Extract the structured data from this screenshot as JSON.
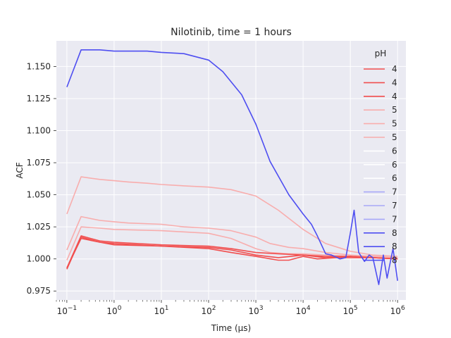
{
  "chart_data": {
    "type": "line",
    "title": "Nilotinib, time = 1 hours",
    "xlabel": "Time (μs)",
    "ylabel": "ACF",
    "xscale": "log",
    "xlim": [
      0.06,
      1500000
    ],
    "ylim": [
      0.968,
      1.17
    ],
    "xticks": [
      {
        "value": 0.1,
        "base": "10",
        "exp": "−1"
      },
      {
        "value": 1,
        "base": "10",
        "exp": "0"
      },
      {
        "value": 10,
        "base": "10",
        "exp": "1"
      },
      {
        "value": 100,
        "base": "10",
        "exp": "2"
      },
      {
        "value": 1000,
        "base": "10",
        "exp": "3"
      },
      {
        "value": 10000,
        "base": "10",
        "exp": "4"
      },
      {
        "value": 100000,
        "base": "10",
        "exp": "5"
      },
      {
        "value": 1000000,
        "base": "10",
        "exp": "6"
      }
    ],
    "yticks": [
      {
        "value": 0.975,
        "label": "0.975"
      },
      {
        "value": 1.0,
        "label": "1.000"
      },
      {
        "value": 1.025,
        "label": "1.025"
      },
      {
        "value": 1.05,
        "label": "1.050"
      },
      {
        "value": 1.075,
        "label": "1.075"
      },
      {
        "value": 1.1,
        "label": "1.100"
      },
      {
        "value": 1.125,
        "label": "1.125"
      },
      {
        "value": 1.15,
        "label": "1.150"
      }
    ],
    "grid": true,
    "background": "#eaeaf2",
    "legend": {
      "title": "pH",
      "placement": "top-right",
      "entries": [
        {
          "label": "4",
          "color": "#f14e4e"
        },
        {
          "label": "4",
          "color": "#f14e4e"
        },
        {
          "label": "4",
          "color": "#f14e4e"
        },
        {
          "label": "5",
          "color": "#f8adad"
        },
        {
          "label": "5",
          "color": "#f8adad"
        },
        {
          "label": "5",
          "color": "#f8adad"
        },
        {
          "label": "6",
          "color": "#ffffff"
        },
        {
          "label": "6",
          "color": "#ffffff"
        },
        {
          "label": "6",
          "color": "#ffffff"
        },
        {
          "label": "7",
          "color": "#a7a7f8"
        },
        {
          "label": "7",
          "color": "#a7a7f8"
        },
        {
          "label": "7",
          "color": "#a7a7f8"
        },
        {
          "label": "8",
          "color": "#4e4ef1"
        },
        {
          "label": "8",
          "color": "#4e4ef1"
        },
        {
          "label": "8",
          "color": "#4e4ef1"
        }
      ]
    },
    "series": [
      {
        "color": "#f8adad",
        "x": [
          0.1,
          0.2,
          0.5,
          1,
          2,
          5,
          10,
          30,
          100,
          300,
          1000,
          3000,
          10000,
          30000,
          100000,
          300000,
          1000000
        ],
        "y": [
          1.035,
          1.064,
          1.062,
          1.061,
          1.06,
          1.059,
          1.058,
          1.057,
          1.056,
          1.054,
          1.049,
          1.038,
          1.023,
          1.012,
          1.006,
          1.003,
          1.002
        ]
      },
      {
        "color": "#f8adad",
        "x": [
          0.1,
          0.2,
          0.5,
          1,
          2,
          10,
          30,
          100,
          300,
          1000,
          2000,
          5000,
          10000,
          30000,
          100000,
          300000,
          1000000
        ],
        "y": [
          1.007,
          1.033,
          1.03,
          1.029,
          1.028,
          1.027,
          1.025,
          1.024,
          1.022,
          1.017,
          1.012,
          1.009,
          1.008,
          1.005,
          1.003,
          1.002,
          1.001
        ]
      },
      {
        "color": "#f8adad",
        "x": [
          0.1,
          0.2,
          0.5,
          1,
          10,
          100,
          300,
          1000,
          2000,
          5000,
          10000,
          30000,
          100000,
          300000,
          1000000
        ],
        "y": [
          0.999,
          1.025,
          1.024,
          1.023,
          1.022,
          1.02,
          1.016,
          1.008,
          1.005,
          1.004,
          1.004,
          1.003,
          1.002,
          1.002,
          1.001
        ]
      },
      {
        "color": "#f14e4e",
        "x": [
          0.1,
          0.2,
          0.5,
          1,
          10,
          100,
          300,
          1000,
          3000,
          10000,
          30000,
          100000,
          300000,
          1000000
        ],
        "y": [
          0.993,
          1.018,
          1.014,
          1.013,
          1.011,
          1.01,
          1.008,
          1.005,
          1.004,
          1.003,
          1.002,
          1.002,
          1.001,
          1.0
        ]
      },
      {
        "color": "#f14e4e",
        "x": [
          0.1,
          0.2,
          0.5,
          1,
          10,
          100,
          300,
          1000,
          3000,
          10000,
          30000,
          100000,
          300000,
          1000000
        ],
        "y": [
          0.992,
          1.017,
          1.013,
          1.012,
          1.01,
          1.009,
          1.007,
          1.003,
          1.001,
          1.003,
          1.001,
          1.002,
          1.001,
          1.0
        ]
      },
      {
        "color": "#f14e4e",
        "x": [
          0.1,
          0.2,
          0.5,
          1,
          10,
          100,
          300,
          1000,
          3000,
          5000,
          10000,
          20000,
          50000,
          100000,
          300000,
          1000000
        ],
        "y": [
          0.993,
          1.016,
          1.013,
          1.011,
          1.01,
          1.008,
          1.005,
          1.002,
          0.999,
          0.999,
          1.002,
          1.0,
          1.001,
          1.001,
          1.001,
          1.0
        ]
      },
      {
        "color": "#4e4ef1",
        "x": [
          0.1,
          0.2,
          0.5,
          1,
          5,
          10,
          30,
          100,
          200,
          500,
          1000,
          2000,
          5000,
          10000,
          15000,
          20000,
          30000,
          40000,
          60000,
          80000,
          100000,
          120000,
          150000,
          200000,
          250000,
          300000,
          400000,
          500000,
          600000,
          800000,
          1000000
        ],
        "y": [
          1.134,
          1.163,
          1.163,
          1.162,
          1.162,
          1.161,
          1.16,
          1.155,
          1.146,
          1.128,
          1.105,
          1.076,
          1.05,
          1.035,
          1.027,
          1.018,
          1.004,
          1.003,
          1.0,
          1.001,
          1.02,
          1.038,
          1.005,
          0.998,
          1.003,
          1.001,
          0.98,
          1.003,
          0.985,
          1.008,
          0.983
        ]
      }
    ]
  }
}
